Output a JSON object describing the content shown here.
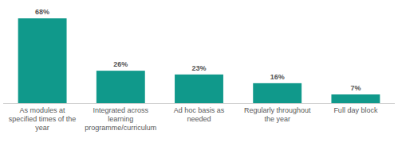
{
  "chart_data": {
    "type": "bar",
    "categories": [
      "As modules at specified times of the year",
      "Integrated across learning programme/curriculum",
      "Ad hoc basis as needed",
      "Regularly throughout the year",
      "Full day block"
    ],
    "values": [
      68,
      26,
      23,
      16,
      7
    ],
    "value_labels": [
      "68%",
      "26%",
      "23%",
      "16%",
      "7%"
    ],
    "color": "#10998b",
    "ylim": [
      0,
      70
    ],
    "data_labels": true,
    "tick_labels": "x",
    "grid": false
  }
}
